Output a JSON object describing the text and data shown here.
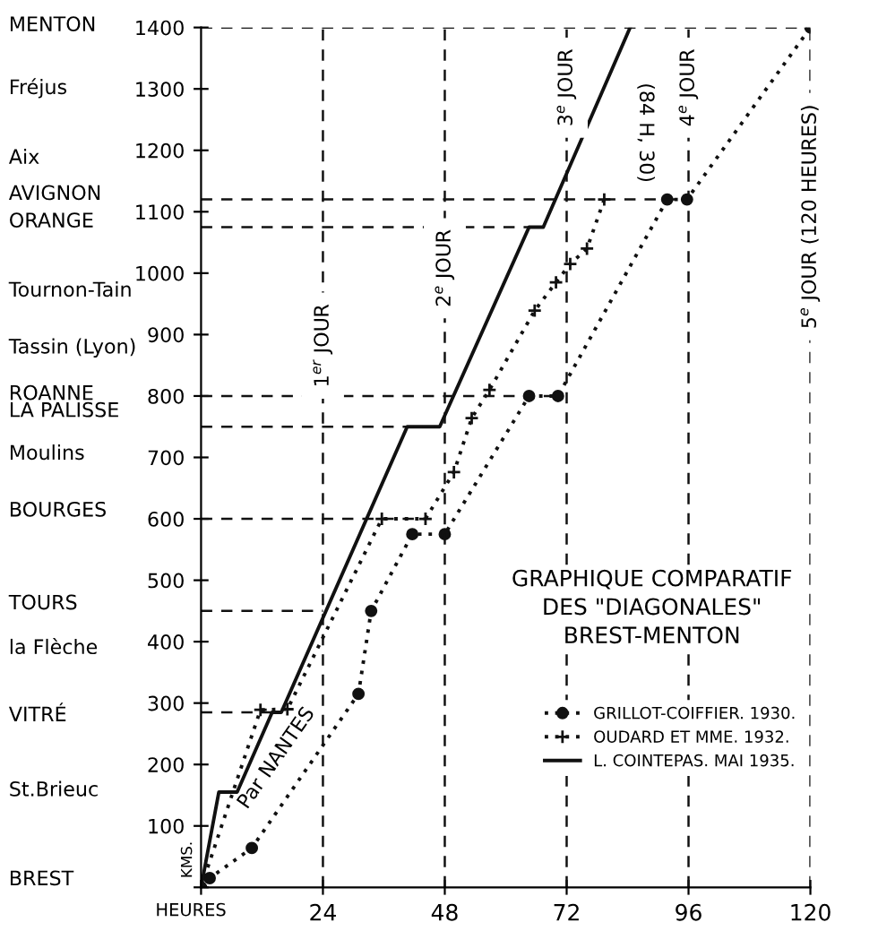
{
  "chart_data": {
    "type": "line",
    "title": "GRAPHIQUE COMPARATIF\nDES \"DIAGONALES\"\nBREST-MENTON",
    "xlabel": "HEURES",
    "ylabel": "KMS.",
    "xlim": [
      0,
      120
    ],
    "ylim": [
      0,
      1400
    ],
    "xticks": [
      {
        "value": 0,
        "label": null
      },
      24,
      48,
      72,
      96,
      120
    ],
    "yticks": [
      {
        "value": 0,
        "label": null
      },
      100,
      200,
      300,
      400,
      500,
      600,
      700,
      800,
      900,
      1000,
      1100,
      1200,
      1300,
      1400
    ],
    "grid": false,
    "legend": "bottom right",
    "series": [
      {
        "name": "GRILLOT-COIFFIER. 1930.",
        "color": "#111111",
        "line_style": "dotted",
        "marker": "circle",
        "x": [
          0,
          1.7,
          10,
          31,
          33.5,
          41.6,
          48,
          64.6,
          70.3,
          91.8,
          95.7,
          120
        ],
        "values": [
          0,
          15,
          64,
          315,
          450,
          575,
          575,
          800,
          800,
          1120,
          1120,
          1400
        ]
      },
      {
        "name": "OUDARD ET MME. 1932.",
        "color": "#111111",
        "line_style": "dotted",
        "marker": "cross",
        "x": [
          0,
          11.7,
          17,
          35.6,
          44.2,
          49.8,
          53.3,
          56.8,
          65.7,
          69.9,
          72.7,
          76,
          79.4
        ],
        "values": [
          0,
          289,
          290,
          600,
          600,
          676,
          764,
          810,
          939,
          985,
          1015,
          1040,
          1120
        ]
      },
      {
        "name": "L. COINTEPAS. MAI 1935.",
        "color": "#111111",
        "line_style": "solid",
        "marker": "none",
        "x": [
          0,
          3.5,
          7.1,
          14,
          15.8,
          40.6,
          47,
          64.6,
          67.4,
          84.5
        ],
        "values": [
          0,
          155,
          155,
          285,
          285,
          750,
          750,
          1075,
          1075,
          1400
        ]
      },
      {
        "color": "#111111",
        "line_style": "dashed",
        "marker": "none",
        "x": [
          0,
          120
        ],
        "values": [
          1400,
          1400
        ]
      },
      {
        "color": "#111111",
        "line_style": "dashed",
        "marker": "none",
        "x": [
          0,
          96
        ],
        "values": [
          1120,
          1120
        ]
      },
      {
        "color": "#111111",
        "line_style": "dashed",
        "marker": "none",
        "x": [
          0,
          67.4
        ],
        "values": [
          1075,
          1075
        ]
      },
      {
        "color": "#111111",
        "line_style": "dashed",
        "marker": "none",
        "x": [
          0,
          70.3
        ],
        "values": [
          800,
          800
        ]
      },
      {
        "color": "#111111",
        "line_style": "dashed",
        "marker": "none",
        "x": [
          0,
          47
        ],
        "values": [
          750,
          750
        ]
      },
      {
        "color": "#111111",
        "line_style": "dashed",
        "marker": "none",
        "x": [
          0,
          44.2
        ],
        "values": [
          600,
          600
        ]
      },
      {
        "color": "#111111",
        "line_style": "dashed",
        "marker": "none",
        "x": [
          0,
          24
        ],
        "values": [
          450,
          450
        ]
      },
      {
        "color": "#111111",
        "line_style": "dashed",
        "marker": "none",
        "x": [
          0,
          15.8
        ],
        "values": [
          285,
          285
        ]
      }
    ],
    "ref_lines": [
      {
        "axis": "x",
        "value": 24,
        "label": "1$^{er}$ JOUR",
        "line_style": "dashed",
        "color": "#111111"
      },
      {
        "axis": "x",
        "value": 48,
        "label": "2$^{e}$ JOUR",
        "line_style": "dashed",
        "color": "#111111"
      },
      {
        "axis": "x",
        "value": 72,
        "label": "3$^{e}$ JOUR",
        "line_style": "dashed",
        "color": "#111111"
      },
      {
        "axis": "x",
        "value": 96,
        "label": "4$^{e}$ JOUR",
        "line_style": "dashed",
        "color": "#111111"
      },
      {
        "axis": "x",
        "value": 120,
        "label": "5$^{e}$ JOUR (120 HEURES)",
        "line_style": "dashed",
        "color": "#111111"
      }
    ],
    "annotations": [
      "MENTON",
      "Fréjus",
      "Aix",
      "AVIGNON",
      "ORANGE",
      "Tournon-Tain",
      "Tassin (Lyon)",
      "ROANNE",
      "LA PALISSE",
      "Moulins",
      "BOURGES",
      "TOURS",
      "la Flèche",
      "VITRÉ",
      "St.Brieuc",
      "BREST",
      "Par NANTES",
      "(84 H, 30)"
    ]
  }
}
